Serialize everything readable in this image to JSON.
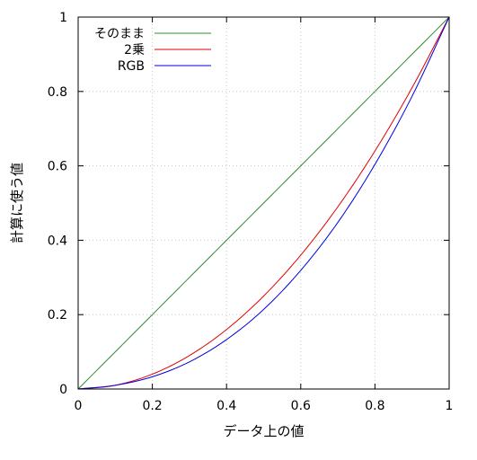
{
  "chart_data": {
    "type": "line",
    "xlabel": "データ上の値",
    "ylabel": "計算に使う値",
    "xlim": [
      0,
      1
    ],
    "ylim": [
      0,
      1
    ],
    "x_ticks": [
      0,
      0.2,
      0.4,
      0.6,
      0.8,
      1
    ],
    "y_ticks": [
      0,
      0.2,
      0.4,
      0.6,
      0.8,
      1
    ],
    "x_tick_labels": [
      "0",
      "0.2",
      "0.4",
      "0.6",
      "0.8",
      "1"
    ],
    "y_tick_labels": [
      "0",
      "0.2",
      "0.4",
      "0.6",
      "0.8",
      "1"
    ],
    "grid": "dotted",
    "legend_position": "top-left",
    "x": [
      0,
      0.1,
      0.2,
      0.3,
      0.4,
      0.5,
      0.6,
      0.7,
      0.8,
      0.9,
      1
    ],
    "series": [
      {
        "name": "そのまま",
        "color": "#2e8b2e",
        "values": [
          0,
          0.1,
          0.2,
          0.3,
          0.4,
          0.5,
          0.6,
          0.7,
          0.8,
          0.9,
          1
        ]
      },
      {
        "name": "2乗",
        "color": "#e00000",
        "values": [
          0,
          0.01,
          0.04,
          0.09,
          0.16,
          0.25,
          0.36,
          0.49,
          0.64,
          0.81,
          1
        ]
      },
      {
        "name": "RGB",
        "color": "#0000e0",
        "values": [
          0,
          0.01,
          0.033,
          0.073,
          0.133,
          0.214,
          0.319,
          0.448,
          0.604,
          0.787,
          1
        ]
      }
    ]
  }
}
